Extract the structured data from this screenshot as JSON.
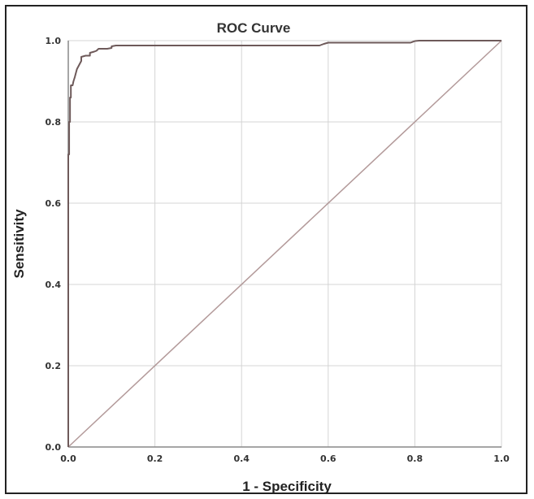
{
  "chart_data": {
    "type": "line",
    "title": "ROC Curve",
    "xlabel": "1 - Specificity",
    "ylabel": "Sensitivity",
    "xlim": [
      0,
      1
    ],
    "ylim": [
      0,
      1
    ],
    "x_ticks": [
      "0.0",
      "0.2",
      "0.4",
      "0.6",
      "0.8",
      "1.0"
    ],
    "y_ticks": [
      "0.0",
      "0.2",
      "0.4",
      "0.6",
      "0.8",
      "1.0"
    ],
    "grid": true,
    "legend": "none",
    "colors": {
      "curve": "#6e5a5a",
      "reference": "#b39a9a",
      "grid": "#d4d4d4",
      "axis": "#888888"
    },
    "series": [
      {
        "x": [
          0.0,
          0.0,
          0.002,
          0.002,
          0.004,
          0.004,
          0.006,
          0.006,
          0.01,
          0.012,
          0.015,
          0.02,
          0.025,
          0.03,
          0.03,
          0.04,
          0.05,
          0.05,
          0.06,
          0.065,
          0.07,
          0.08,
          0.09,
          0.1,
          0.1,
          0.11,
          0.2,
          0.3,
          0.4,
          0.5,
          0.58,
          0.59,
          0.6,
          0.7,
          0.79,
          0.8,
          0.81,
          0.9,
          1.0
        ],
        "y": [
          0.0,
          0.72,
          0.72,
          0.8,
          0.8,
          0.86,
          0.86,
          0.89,
          0.89,
          0.9,
          0.91,
          0.93,
          0.94,
          0.95,
          0.96,
          0.963,
          0.963,
          0.97,
          0.973,
          0.975,
          0.98,
          0.98,
          0.98,
          0.982,
          0.986,
          0.988,
          0.988,
          0.988,
          0.988,
          0.988,
          0.988,
          0.992,
          0.995,
          0.995,
          0.995,
          0.999,
          1.0,
          1.0,
          1.0
        ]
      },
      {
        "x": [
          0.0,
          1.0
        ],
        "y": [
          0.0,
          1.0
        ]
      }
    ]
  }
}
